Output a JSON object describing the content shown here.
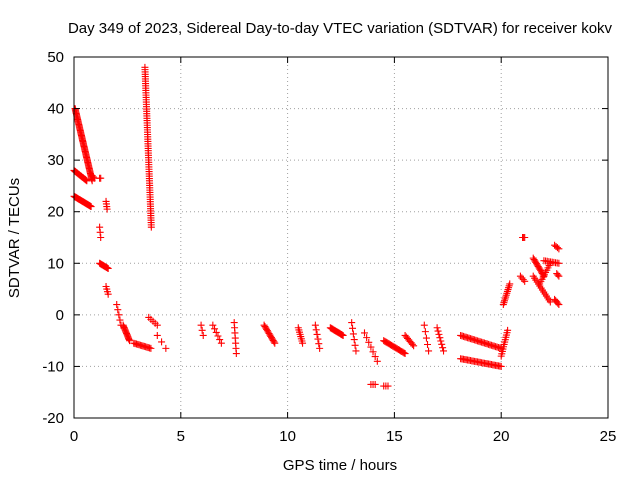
{
  "chart_data": {
    "type": "scatter",
    "title": "Day 349 of 2023, Sidereal Day-to-day VTEC variation (SDTVAR) for receiver kokv",
    "xlabel": "GPS time / hours",
    "ylabel": "SDTVAR / TECUs",
    "xlim": [
      0,
      25
    ],
    "ylim": [
      -20,
      50
    ],
    "xticks": [
      "0",
      "5",
      "10",
      "15",
      "20",
      "25"
    ],
    "yticks": [
      "-20",
      "-10",
      "0",
      "10",
      "20",
      "30",
      "40",
      "50"
    ],
    "grid": true,
    "marker": "plus",
    "color": "#ff0000",
    "segments": [
      {
        "x0": 0.05,
        "x1": 0.85,
        "y0": 40,
        "y1": 26,
        "n": 60
      },
      {
        "x0": 0.0,
        "x1": 0.6,
        "y0": 28,
        "y1": 26,
        "n": 20
      },
      {
        "x0": 0.0,
        "x1": 0.8,
        "y0": 23,
        "y1": 21,
        "n": 30
      },
      {
        "x0": 0.85,
        "x1": 0.95,
        "y0": 27,
        "y1": 26.5,
        "n": 3
      },
      {
        "x0": 1.2,
        "x1": 1.25,
        "y0": 26.5,
        "y1": 26.5,
        "n": 2
      },
      {
        "x0": 1.5,
        "x1": 1.55,
        "y0": 22,
        "y1": 20.5,
        "n": 4
      },
      {
        "x0": 1.2,
        "x1": 1.25,
        "y0": 17,
        "y1": 15,
        "n": 3
      },
      {
        "x0": 1.2,
        "x1": 1.6,
        "y0": 10,
        "y1": 9,
        "n": 12
      },
      {
        "x0": 1.5,
        "x1": 1.6,
        "y0": 5.5,
        "y1": 4,
        "n": 4
      },
      {
        "x0": 2.0,
        "x1": 2.2,
        "y0": 2,
        "y1": -2,
        "n": 5
      },
      {
        "x0": 2.3,
        "x1": 2.6,
        "y0": -2,
        "y1": -5,
        "n": 14
      },
      {
        "x0": 2.8,
        "x1": 3.6,
        "y0": -5.5,
        "y1": -6.5,
        "n": 14
      },
      {
        "x0": 3.32,
        "x1": 3.62,
        "y0": 48,
        "y1": 17,
        "n": 70
      },
      {
        "x0": 3.5,
        "x1": 3.9,
        "y0": -0.5,
        "y1": -2,
        "n": 5
      },
      {
        "x0": 3.9,
        "x1": 4.3,
        "y0": -4,
        "y1": -6.5,
        "n": 3
      },
      {
        "x0": 5.95,
        "x1": 6.05,
        "y0": -2,
        "y1": -4,
        "n": 3
      },
      {
        "x0": 6.5,
        "x1": 6.9,
        "y0": -2,
        "y1": -5.5,
        "n": 6
      },
      {
        "x0": 7.5,
        "x1": 7.6,
        "y0": -1.5,
        "y1": -7.5,
        "n": 7
      },
      {
        "x0": 8.9,
        "x1": 9.4,
        "y0": -2,
        "y1": -5.5,
        "n": 14
      },
      {
        "x0": 10.5,
        "x1": 10.7,
        "y0": -2.5,
        "y1": -5.5,
        "n": 8
      },
      {
        "x0": 11.3,
        "x1": 11.5,
        "y0": -2,
        "y1": -6.5,
        "n": 6
      },
      {
        "x0": 12.0,
        "x1": 12.6,
        "y0": -2.5,
        "y1": -4,
        "n": 16
      },
      {
        "x0": 13.0,
        "x1": 13.2,
        "y0": -1.5,
        "y1": -7,
        "n": 6
      },
      {
        "x0": 13.6,
        "x1": 14.2,
        "y0": -3.5,
        "y1": -9,
        "n": 7
      },
      {
        "x0": 13.9,
        "x1": 14.1,
        "y0": -13.5,
        "y1": -13.5,
        "n": 3
      },
      {
        "x0": 14.5,
        "x1": 14.7,
        "y0": -13.8,
        "y1": -13.8,
        "n": 3
      },
      {
        "x0": 14.5,
        "x1": 15.5,
        "y0": -5,
        "y1": -7.5,
        "n": 20
      },
      {
        "x0": 15.5,
        "x1": 15.9,
        "y0": -4,
        "y1": -6,
        "n": 8
      },
      {
        "x0": 16.4,
        "x1": 16.6,
        "y0": -2,
        "y1": -7,
        "n": 5
      },
      {
        "x0": 17.0,
        "x1": 17.3,
        "y0": -2.5,
        "y1": -7,
        "n": 8
      },
      {
        "x0": 18.1,
        "x1": 20.0,
        "y0": -4,
        "y1": -6.5,
        "n": 30
      },
      {
        "x0": 18.1,
        "x1": 20.0,
        "y0": -8.5,
        "y1": -10,
        "n": 30
      },
      {
        "x0": 20.0,
        "x1": 20.3,
        "y0": -8,
        "y1": -3,
        "n": 12
      },
      {
        "x0": 20.1,
        "x1": 20.4,
        "y0": 2,
        "y1": 6,
        "n": 12
      },
      {
        "x0": 20.9,
        "x1": 21.1,
        "y0": 7.5,
        "y1": 6.5,
        "n": 4
      },
      {
        "x0": 21.0,
        "x1": 21.1,
        "y0": 15,
        "y1": 15,
        "n": 3
      },
      {
        "x0": 21.5,
        "x1": 22.0,
        "y0": 11,
        "y1": 7.5,
        "n": 14
      },
      {
        "x0": 21.5,
        "x1": 22.3,
        "y0": 7.5,
        "y1": 2.5,
        "n": 14
      },
      {
        "x0": 21.8,
        "x1": 22.3,
        "y0": 6,
        "y1": 10,
        "n": 10
      },
      {
        "x0": 22.0,
        "x1": 22.7,
        "y0": 10.5,
        "y1": 10,
        "n": 10
      },
      {
        "x0": 22.5,
        "x1": 22.7,
        "y0": 3,
        "y1": 2,
        "n": 5
      },
      {
        "x0": 22.5,
        "x1": 22.7,
        "y0": 13.5,
        "y1": 12.8,
        "n": 4
      },
      {
        "x0": 22.6,
        "x1": 22.7,
        "y0": 8,
        "y1": 7.5,
        "n": 3
      }
    ]
  }
}
